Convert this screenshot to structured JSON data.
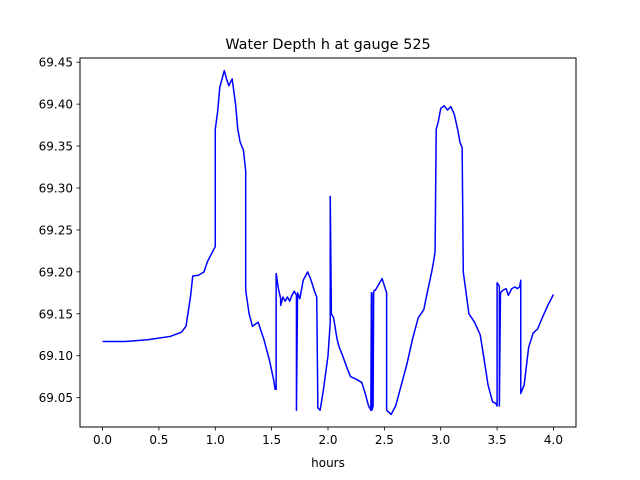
{
  "chart_data": {
    "type": "line",
    "title": "Water Depth h at gauge 525",
    "xlabel": "hours",
    "ylabel": "",
    "xlim": [
      -0.2,
      4.2
    ],
    "ylim": [
      69.015,
      69.455
    ],
    "xticks": [
      0.0,
      0.5,
      1.0,
      1.5,
      2.0,
      2.5,
      3.0,
      3.5,
      4.0
    ],
    "xtick_labels": [
      "0.0",
      "0.5",
      "1.0",
      "1.5",
      "2.0",
      "2.5",
      "3.0",
      "3.5",
      "4.0"
    ],
    "yticks": [
      69.05,
      69.1,
      69.15,
      69.2,
      69.25,
      69.3,
      69.35,
      69.4,
      69.45
    ],
    "ytick_labels": [
      "69.05",
      "69.10",
      "69.15",
      "69.20",
      "69.25",
      "69.30",
      "69.35",
      "69.40",
      "69.45"
    ],
    "grid": false,
    "series": [
      {
        "color": "#0000ff",
        "x": [
          0.0,
          0.2,
          0.4,
          0.6,
          0.7,
          0.74,
          0.78,
          0.8,
          0.85,
          0.9,
          0.93,
          0.96,
          1.0,
          1.0,
          1.02,
          1.02,
          1.04,
          1.06,
          1.08,
          1.1,
          1.12,
          1.15,
          1.18,
          1.2,
          1.22,
          1.25,
          1.27,
          1.27,
          1.3,
          1.33,
          1.38,
          1.43,
          1.48,
          1.52,
          1.53,
          1.54,
          1.54,
          1.56,
          1.58,
          1.58,
          1.6,
          1.62,
          1.64,
          1.66,
          1.68,
          1.7,
          1.72,
          1.72,
          1.73,
          1.75,
          1.78,
          1.82,
          1.85,
          1.88,
          1.9,
          1.91,
          1.93,
          1.96,
          2.0,
          2.02,
          2.02,
          2.03,
          2.05,
          2.08,
          2.1,
          2.13,
          2.17,
          2.2,
          2.25,
          2.3,
          2.33,
          2.36,
          2.38,
          2.385,
          2.39,
          2.39,
          2.4,
          2.405,
          2.41,
          2.42,
          2.45,
          2.48,
          2.52,
          2.52,
          2.56,
          2.6,
          2.65,
          2.7,
          2.75,
          2.8,
          2.85,
          2.88,
          2.92,
          2.94,
          2.95,
          2.96,
          2.98,
          3.0,
          3.03,
          3.06,
          3.09,
          3.12,
          3.15,
          3.17,
          3.19,
          3.2,
          3.22,
          3.25,
          3.3,
          3.35,
          3.38,
          3.42,
          3.46,
          3.49,
          3.5,
          3.5,
          3.52,
          3.52,
          3.53,
          3.55,
          3.58,
          3.6,
          3.63,
          3.66,
          3.68,
          3.7,
          3.71,
          3.71,
          3.74,
          3.78,
          3.82,
          3.86,
          3.9,
          3.95,
          4.0
        ],
        "y": [
          69.117,
          69.117,
          69.119,
          69.123,
          69.128,
          69.135,
          69.17,
          69.195,
          69.196,
          69.2,
          69.212,
          69.22,
          69.23,
          69.37,
          69.39,
          69.39,
          69.42,
          69.43,
          69.44,
          69.43,
          69.422,
          69.43,
          69.4,
          69.37,
          69.355,
          69.345,
          69.32,
          69.178,
          69.15,
          69.135,
          69.14,
          69.12,
          69.095,
          69.07,
          69.06,
          69.06,
          69.198,
          69.18,
          69.168,
          69.16,
          69.17,
          69.165,
          69.17,
          69.165,
          69.172,
          69.177,
          69.172,
          69.035,
          69.175,
          69.168,
          69.19,
          69.2,
          69.19,
          69.177,
          69.17,
          69.038,
          69.035,
          69.06,
          69.1,
          69.14,
          69.29,
          69.15,
          69.145,
          69.12,
          69.11,
          69.1,
          69.085,
          69.075,
          69.072,
          69.068,
          69.055,
          69.04,
          69.035,
          69.175,
          69.175,
          69.035,
          69.04,
          69.175,
          69.178,
          69.178,
          69.185,
          69.192,
          69.175,
          69.035,
          69.03,
          69.04,
          69.065,
          69.09,
          69.12,
          69.145,
          69.155,
          69.175,
          69.2,
          69.215,
          69.225,
          69.37,
          69.38,
          69.395,
          69.398,
          69.393,
          69.397,
          69.388,
          69.37,
          69.355,
          69.348,
          69.2,
          69.18,
          69.15,
          69.14,
          69.125,
          69.1,
          69.065,
          69.045,
          69.043,
          69.04,
          69.187,
          69.183,
          69.04,
          69.175,
          69.178,
          69.18,
          69.172,
          69.18,
          69.182,
          69.18,
          69.182,
          69.19,
          69.055,
          69.065,
          69.11,
          69.127,
          69.132,
          69.145,
          69.16,
          69.173
        ]
      }
    ]
  }
}
